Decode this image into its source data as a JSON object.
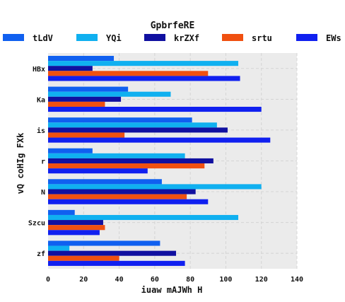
{
  "chart_data": {
    "type": "bar",
    "orientation": "horizontal",
    "title": "GpbrfeRE",
    "xlabel": "iuaw mAJWh H",
    "ylabel": "vQ coHIg FXk",
    "xlim": [
      0,
      140
    ],
    "xticks": [
      0,
      20,
      40,
      60,
      80,
      100,
      120,
      140
    ],
    "grid": true,
    "legend_position": "top",
    "categories": [
      "HBx",
      "Ka",
      "is",
      "r",
      "N",
      "Szcu",
      "zf"
    ],
    "series": [
      {
        "name": "tLdV",
        "color": "#1060f0",
        "values": [
          37,
          45,
          81,
          25,
          64,
          15,
          63
        ]
      },
      {
        "name": "YQi",
        "color": "#10b0f0",
        "values": [
          107,
          69,
          95,
          77,
          120,
          107,
          12
        ]
      },
      {
        "name": "krZXf",
        "color": "#1010a0",
        "values": [
          25,
          41,
          101,
          93,
          83,
          31,
          72
        ]
      },
      {
        "name": "srtu",
        "color": "#f05010",
        "values": [
          90,
          32,
          43,
          88,
          78,
          32,
          40
        ]
      },
      {
        "name": "EWs",
        "color": "#1020f0",
        "values": [
          108,
          120,
          125,
          56,
          90,
          29,
          77
        ]
      }
    ]
  }
}
